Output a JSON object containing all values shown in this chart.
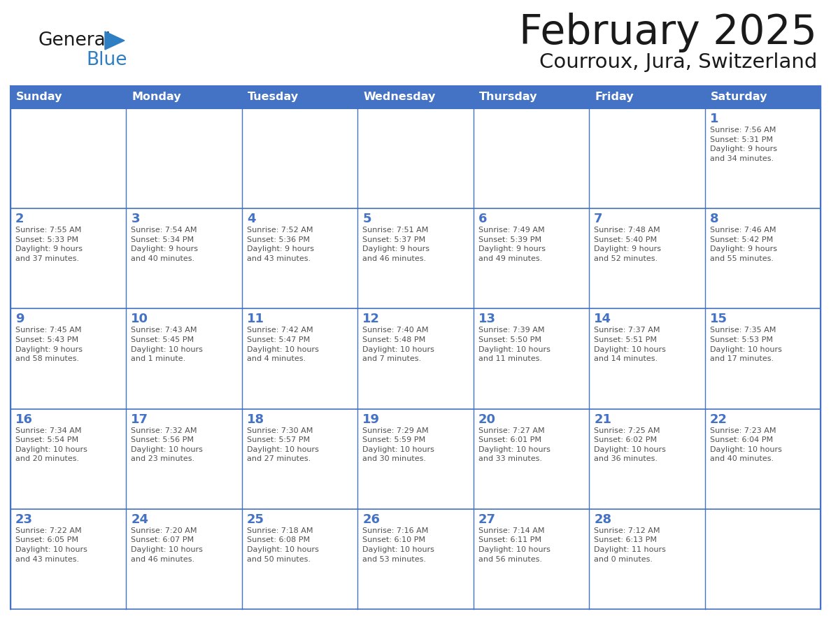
{
  "title": "February 2025",
  "subtitle": "Courroux, Jura, Switzerland",
  "days_of_week": [
    "Sunday",
    "Monday",
    "Tuesday",
    "Wednesday",
    "Thursday",
    "Friday",
    "Saturday"
  ],
  "header_bg": "#4472C4",
  "header_text": "#FFFFFF",
  "border_color": "#4472C4",
  "day_num_color": "#4472C4",
  "text_color": "#505050",
  "title_color": "#1a1a1a",
  "logo_general_color": "#1a1a1a",
  "logo_blue_color": "#2E7EC4",
  "logo_triangle_color": "#2E7EC4",
  "weeks": [
    [
      {
        "day": null,
        "info": null
      },
      {
        "day": null,
        "info": null
      },
      {
        "day": null,
        "info": null
      },
      {
        "day": null,
        "info": null
      },
      {
        "day": null,
        "info": null
      },
      {
        "day": null,
        "info": null
      },
      {
        "day": 1,
        "info": "Sunrise: 7:56 AM\nSunset: 5:31 PM\nDaylight: 9 hours\nand 34 minutes."
      }
    ],
    [
      {
        "day": 2,
        "info": "Sunrise: 7:55 AM\nSunset: 5:33 PM\nDaylight: 9 hours\nand 37 minutes."
      },
      {
        "day": 3,
        "info": "Sunrise: 7:54 AM\nSunset: 5:34 PM\nDaylight: 9 hours\nand 40 minutes."
      },
      {
        "day": 4,
        "info": "Sunrise: 7:52 AM\nSunset: 5:36 PM\nDaylight: 9 hours\nand 43 minutes."
      },
      {
        "day": 5,
        "info": "Sunrise: 7:51 AM\nSunset: 5:37 PM\nDaylight: 9 hours\nand 46 minutes."
      },
      {
        "day": 6,
        "info": "Sunrise: 7:49 AM\nSunset: 5:39 PM\nDaylight: 9 hours\nand 49 minutes."
      },
      {
        "day": 7,
        "info": "Sunrise: 7:48 AM\nSunset: 5:40 PM\nDaylight: 9 hours\nand 52 minutes."
      },
      {
        "day": 8,
        "info": "Sunrise: 7:46 AM\nSunset: 5:42 PM\nDaylight: 9 hours\nand 55 minutes."
      }
    ],
    [
      {
        "day": 9,
        "info": "Sunrise: 7:45 AM\nSunset: 5:43 PM\nDaylight: 9 hours\nand 58 minutes."
      },
      {
        "day": 10,
        "info": "Sunrise: 7:43 AM\nSunset: 5:45 PM\nDaylight: 10 hours\nand 1 minute."
      },
      {
        "day": 11,
        "info": "Sunrise: 7:42 AM\nSunset: 5:47 PM\nDaylight: 10 hours\nand 4 minutes."
      },
      {
        "day": 12,
        "info": "Sunrise: 7:40 AM\nSunset: 5:48 PM\nDaylight: 10 hours\nand 7 minutes."
      },
      {
        "day": 13,
        "info": "Sunrise: 7:39 AM\nSunset: 5:50 PM\nDaylight: 10 hours\nand 11 minutes."
      },
      {
        "day": 14,
        "info": "Sunrise: 7:37 AM\nSunset: 5:51 PM\nDaylight: 10 hours\nand 14 minutes."
      },
      {
        "day": 15,
        "info": "Sunrise: 7:35 AM\nSunset: 5:53 PM\nDaylight: 10 hours\nand 17 minutes."
      }
    ],
    [
      {
        "day": 16,
        "info": "Sunrise: 7:34 AM\nSunset: 5:54 PM\nDaylight: 10 hours\nand 20 minutes."
      },
      {
        "day": 17,
        "info": "Sunrise: 7:32 AM\nSunset: 5:56 PM\nDaylight: 10 hours\nand 23 minutes."
      },
      {
        "day": 18,
        "info": "Sunrise: 7:30 AM\nSunset: 5:57 PM\nDaylight: 10 hours\nand 27 minutes."
      },
      {
        "day": 19,
        "info": "Sunrise: 7:29 AM\nSunset: 5:59 PM\nDaylight: 10 hours\nand 30 minutes."
      },
      {
        "day": 20,
        "info": "Sunrise: 7:27 AM\nSunset: 6:01 PM\nDaylight: 10 hours\nand 33 minutes."
      },
      {
        "day": 21,
        "info": "Sunrise: 7:25 AM\nSunset: 6:02 PM\nDaylight: 10 hours\nand 36 minutes."
      },
      {
        "day": 22,
        "info": "Sunrise: 7:23 AM\nSunset: 6:04 PM\nDaylight: 10 hours\nand 40 minutes."
      }
    ],
    [
      {
        "day": 23,
        "info": "Sunrise: 7:22 AM\nSunset: 6:05 PM\nDaylight: 10 hours\nand 43 minutes."
      },
      {
        "day": 24,
        "info": "Sunrise: 7:20 AM\nSunset: 6:07 PM\nDaylight: 10 hours\nand 46 minutes."
      },
      {
        "day": 25,
        "info": "Sunrise: 7:18 AM\nSunset: 6:08 PM\nDaylight: 10 hours\nand 50 minutes."
      },
      {
        "day": 26,
        "info": "Sunrise: 7:16 AM\nSunset: 6:10 PM\nDaylight: 10 hours\nand 53 minutes."
      },
      {
        "day": 27,
        "info": "Sunrise: 7:14 AM\nSunset: 6:11 PM\nDaylight: 10 hours\nand 56 minutes."
      },
      {
        "day": 28,
        "info": "Sunrise: 7:12 AM\nSunset: 6:13 PM\nDaylight: 11 hours\nand 0 minutes."
      },
      {
        "day": null,
        "info": null
      }
    ]
  ]
}
